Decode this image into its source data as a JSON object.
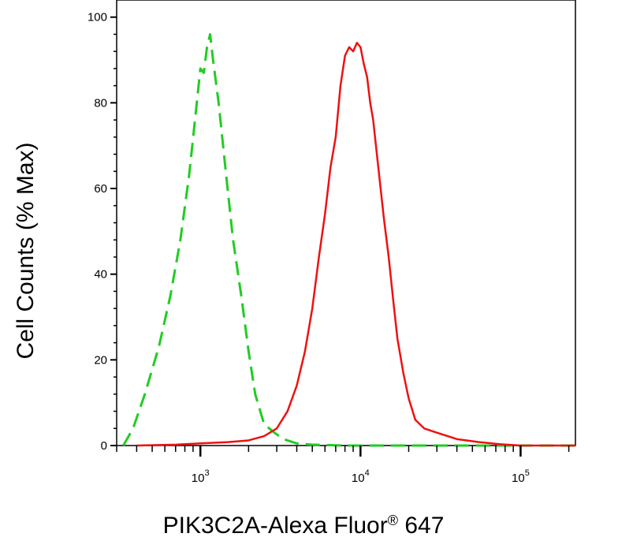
{
  "chart_data": {
    "type": "line",
    "xlabel": "PIK3C2A-Alexa Fluor",
    "xlabel_mark": "®",
    "xlabel_suffix": " 647",
    "ylabel": "Cell Counts (% Max)",
    "x_scale": "log",
    "xlim": [
      300,
      220000
    ],
    "ylim": [
      0,
      104
    ],
    "grid": false,
    "legend": "none",
    "y_ticks": [
      {
        "value": 0,
        "label": "0"
      },
      {
        "value": 20,
        "label": "20"
      },
      {
        "value": 40,
        "label": "40"
      },
      {
        "value": 60,
        "label": "60"
      },
      {
        "value": 80,
        "label": "80"
      },
      {
        "value": 100,
        "label": "100"
      }
    ],
    "x_ticks": [
      {
        "value": 1000,
        "base": "10",
        "exp": "3"
      },
      {
        "value": 10000,
        "base": "10",
        "exp": "4"
      },
      {
        "value": 100000,
        "base": "10",
        "exp": "5"
      }
    ],
    "series": [
      {
        "color": "#22cc22",
        "dash": "dashed",
        "points": [
          [
            330,
            0
          ],
          [
            380,
            4
          ],
          [
            450,
            12
          ],
          [
            550,
            23
          ],
          [
            650,
            35
          ],
          [
            750,
            48
          ],
          [
            850,
            63
          ],
          [
            950,
            80
          ],
          [
            1000,
            88
          ],
          [
            1050,
            87
          ],
          [
            1100,
            93
          ],
          [
            1150,
            96
          ],
          [
            1200,
            90
          ],
          [
            1300,
            80
          ],
          [
            1450,
            63
          ],
          [
            1600,
            48
          ],
          [
            1800,
            35
          ],
          [
            2000,
            22
          ],
          [
            2200,
            12
          ],
          [
            2500,
            5
          ],
          [
            2900,
            3
          ],
          [
            3300,
            1.5
          ],
          [
            4000,
            0.5
          ],
          [
            5000,
            0.2
          ],
          [
            8000,
            0
          ],
          [
            30000,
            0
          ],
          [
            220000,
            0
          ]
        ]
      },
      {
        "color": "#ee1111",
        "dash": "solid",
        "points": [
          [
            400,
            0
          ],
          [
            700,
            0.2
          ],
          [
            1000,
            0.5
          ],
          [
            1500,
            0.8
          ],
          [
            2000,
            1.2
          ],
          [
            2500,
            2.2
          ],
          [
            3000,
            4
          ],
          [
            3500,
            8
          ],
          [
            4000,
            14
          ],
          [
            4500,
            22
          ],
          [
            5000,
            32
          ],
          [
            5500,
            44
          ],
          [
            6000,
            54
          ],
          [
            6500,
            65
          ],
          [
            7000,
            72
          ],
          [
            7500,
            84
          ],
          [
            8000,
            91
          ],
          [
            8500,
            93
          ],
          [
            9000,
            92
          ],
          [
            9500,
            94
          ],
          [
            10000,
            93
          ],
          [
            10500,
            89
          ],
          [
            11000,
            86
          ],
          [
            11500,
            80
          ],
          [
            12000,
            76
          ],
          [
            13000,
            64
          ],
          [
            14000,
            53
          ],
          [
            15000,
            44
          ],
          [
            16000,
            34
          ],
          [
            17000,
            25
          ],
          [
            18500,
            17
          ],
          [
            20000,
            11
          ],
          [
            22000,
            6
          ],
          [
            25000,
            4
          ],
          [
            30000,
            3
          ],
          [
            40000,
            1.5
          ],
          [
            55000,
            0.8
          ],
          [
            75000,
            0.3
          ],
          [
            100000,
            0
          ],
          [
            220000,
            0
          ]
        ]
      }
    ]
  }
}
